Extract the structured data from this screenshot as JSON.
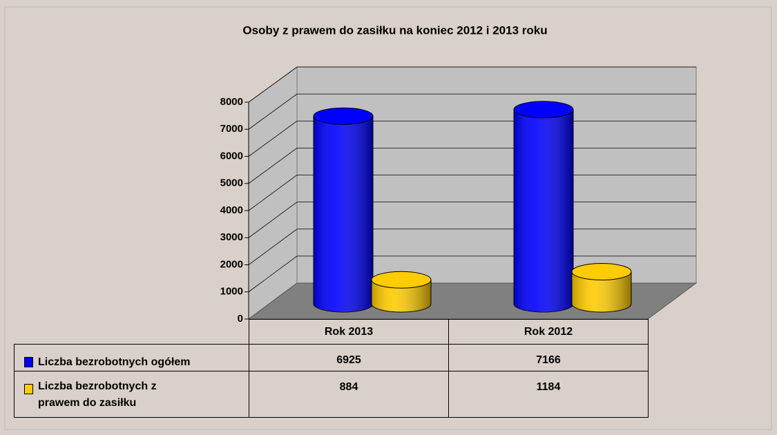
{
  "chart_data": {
    "type": "bar",
    "title": "Osoby z prawem do zasiłku na koniec 2012 i 2013 roku",
    "categories": [
      "Rok 2013",
      "Rok 2012"
    ],
    "series": [
      {
        "name": "Liczba bezrobotnych ogółem",
        "color": "#0000ff",
        "values": [
          6925,
          7166
        ]
      },
      {
        "name": "Liczba bezrobotnych z prawem do zasiłku",
        "color": "#ffcc00",
        "values": [
          884,
          1184
        ]
      }
    ],
    "ylim": [
      0,
      8000
    ],
    "yticks": [
      0,
      1000,
      2000,
      3000,
      4000,
      5000,
      6000,
      7000,
      8000
    ],
    "grid": true
  }
}
